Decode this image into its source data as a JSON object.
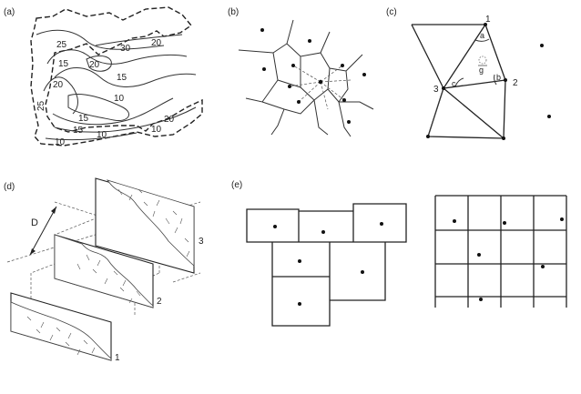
{
  "panels": {
    "a": {
      "label": "(a)",
      "contour_labels": [
        "25",
        "30",
        "20",
        "15",
        "20",
        "15",
        "20",
        "10",
        "25",
        "15",
        "20",
        "15",
        "10",
        "10"
      ]
    },
    "b": {
      "label": "(b)"
    },
    "c": {
      "label": "(c)",
      "vertex_labels": [
        "1",
        "2",
        "3"
      ],
      "angle_labels": [
        "a",
        "b",
        "c"
      ],
      "centroid_label": "g"
    },
    "d": {
      "label": "(d)",
      "distance_label": "D",
      "slice_labels": [
        "1",
        "2",
        "3"
      ]
    },
    "e": {
      "label": "(e)"
    }
  }
}
